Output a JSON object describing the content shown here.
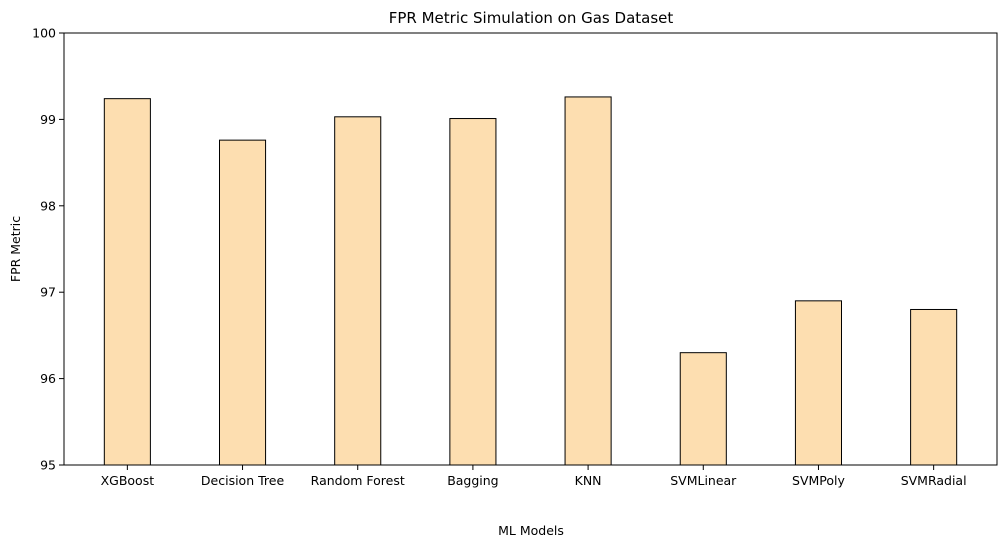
{
  "chart_data": {
    "type": "bar",
    "title": "FPR Metric Simulation on Gas Dataset",
    "xlabel": "ML Models",
    "ylabel": "FPR Metric",
    "categories": [
      "XGBoost",
      "Decision Tree",
      "Random Forest",
      "Bagging",
      "KNN",
      "SVMLinear",
      "SVMPoly",
      "SVMRadial"
    ],
    "values": [
      99.24,
      98.76,
      99.03,
      99.01,
      99.26,
      96.3,
      96.9,
      96.8
    ],
    "ylim": [
      95,
      100
    ],
    "yticks": [
      95,
      96,
      97,
      98,
      99,
      100
    ],
    "grid": false,
    "colors": {
      "bar_fill": "#fddeb0",
      "bar_edge": "#000000"
    }
  }
}
